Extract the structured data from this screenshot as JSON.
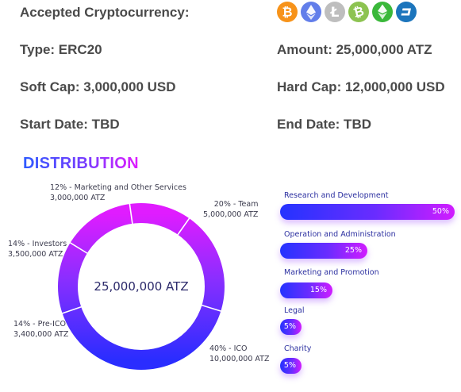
{
  "info": {
    "accepted_label": "Accepted Cryptocurrency:",
    "type": "Type: ERC20",
    "amount": "Amount: 25,000,000 ATZ",
    "soft_cap": "Soft Cap: 3,000,000 USD",
    "hard_cap": "Hard Cap: 12,000,000 USD",
    "start_date": "Start Date: TBD",
    "end_date": "End Date: TBD"
  },
  "coins": [
    {
      "icon": "bitcoin-icon",
      "color": "#f7931a"
    },
    {
      "icon": "ethereum-icon",
      "color": "#627eea"
    },
    {
      "icon": "litecoin-icon",
      "color": "#bebebe"
    },
    {
      "icon": "bitcoin-cash-icon",
      "color": "#8dc351"
    },
    {
      "icon": "ethereum-classic-icon",
      "color": "#3ab83a"
    },
    {
      "icon": "dash-icon",
      "color": "#1c75bc"
    }
  ],
  "distribution": {
    "title": "DISTRIBUTION",
    "total": "25,000,000 ATZ",
    "slices": [
      {
        "percent": 12,
        "label": "12% - Marketing and Other Services",
        "amount": "3,000,000 ATZ"
      },
      {
        "percent": 20,
        "label": "20% - Team",
        "amount": "5,000,000 ATZ"
      },
      {
        "percent": 40,
        "label": "40% - ICO",
        "amount": "10,000,000 ATZ"
      },
      {
        "percent": 14,
        "label": "14% - Pre-ICO",
        "amount": "3,400,000 ATZ"
      },
      {
        "percent": 14,
        "label": "14% - Investors",
        "amount": "3,500,000 ATZ"
      }
    ]
  },
  "budget": [
    {
      "label": "Research and Development",
      "value": "50%",
      "fraction": 0.5
    },
    {
      "label": "Operation and Administration",
      "value": "25%",
      "fraction": 0.25
    },
    {
      "label": "Marketing and Promotion",
      "value": "15%",
      "fraction": 0.15
    },
    {
      "label": "Legal",
      "value": "5%",
      "fraction": 0.05
    },
    {
      "label": "Charity",
      "value": "5%",
      "fraction": 0.05
    }
  ],
  "colors": {
    "gradient_start": "#2433ff",
    "gradient_mid": "#6a2cff",
    "gradient_end": "#d11cff"
  }
}
